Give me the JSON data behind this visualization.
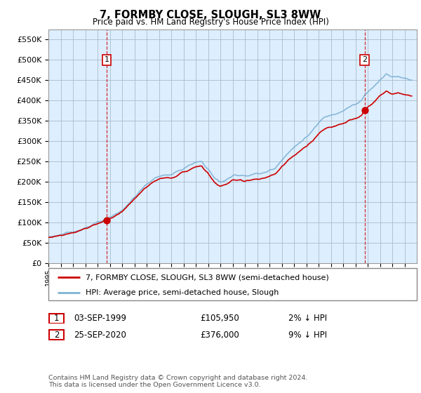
{
  "title": "7, FORMBY CLOSE, SLOUGH, SL3 8WW",
  "subtitle": "Price paid vs. HM Land Registry's House Price Index (HPI)",
  "ylim": [
    0,
    575000
  ],
  "yticks": [
    0,
    50000,
    100000,
    150000,
    200000,
    250000,
    300000,
    350000,
    400000,
    450000,
    500000,
    550000
  ],
  "sale1_year": 1999.75,
  "sale1_price": 105950,
  "sale2_year": 2020.75,
  "sale2_price": 376000,
  "legend_line1": "7, FORMBY CLOSE, SLOUGH, SL3 8WW (semi-detached house)",
  "legend_line2": "HPI: Average price, semi-detached house, Slough",
  "table_row1": [
    "1",
    "03-SEP-1999",
    "£105,950",
    "2% ↓ HPI"
  ],
  "table_row2": [
    "2",
    "25-SEP-2020",
    "£376,000",
    "9% ↓ HPI"
  ],
  "footnote": "Contains HM Land Registry data © Crown copyright and database right 2024.\nThis data is licensed under the Open Government Licence v3.0.",
  "line_color_red": "#cc0000",
  "line_color_blue": "#7fb3d3",
  "plot_bg": "#ddeeff",
  "grid_color": "#aabbcc",
  "start_year": 1995,
  "end_year": 2024
}
